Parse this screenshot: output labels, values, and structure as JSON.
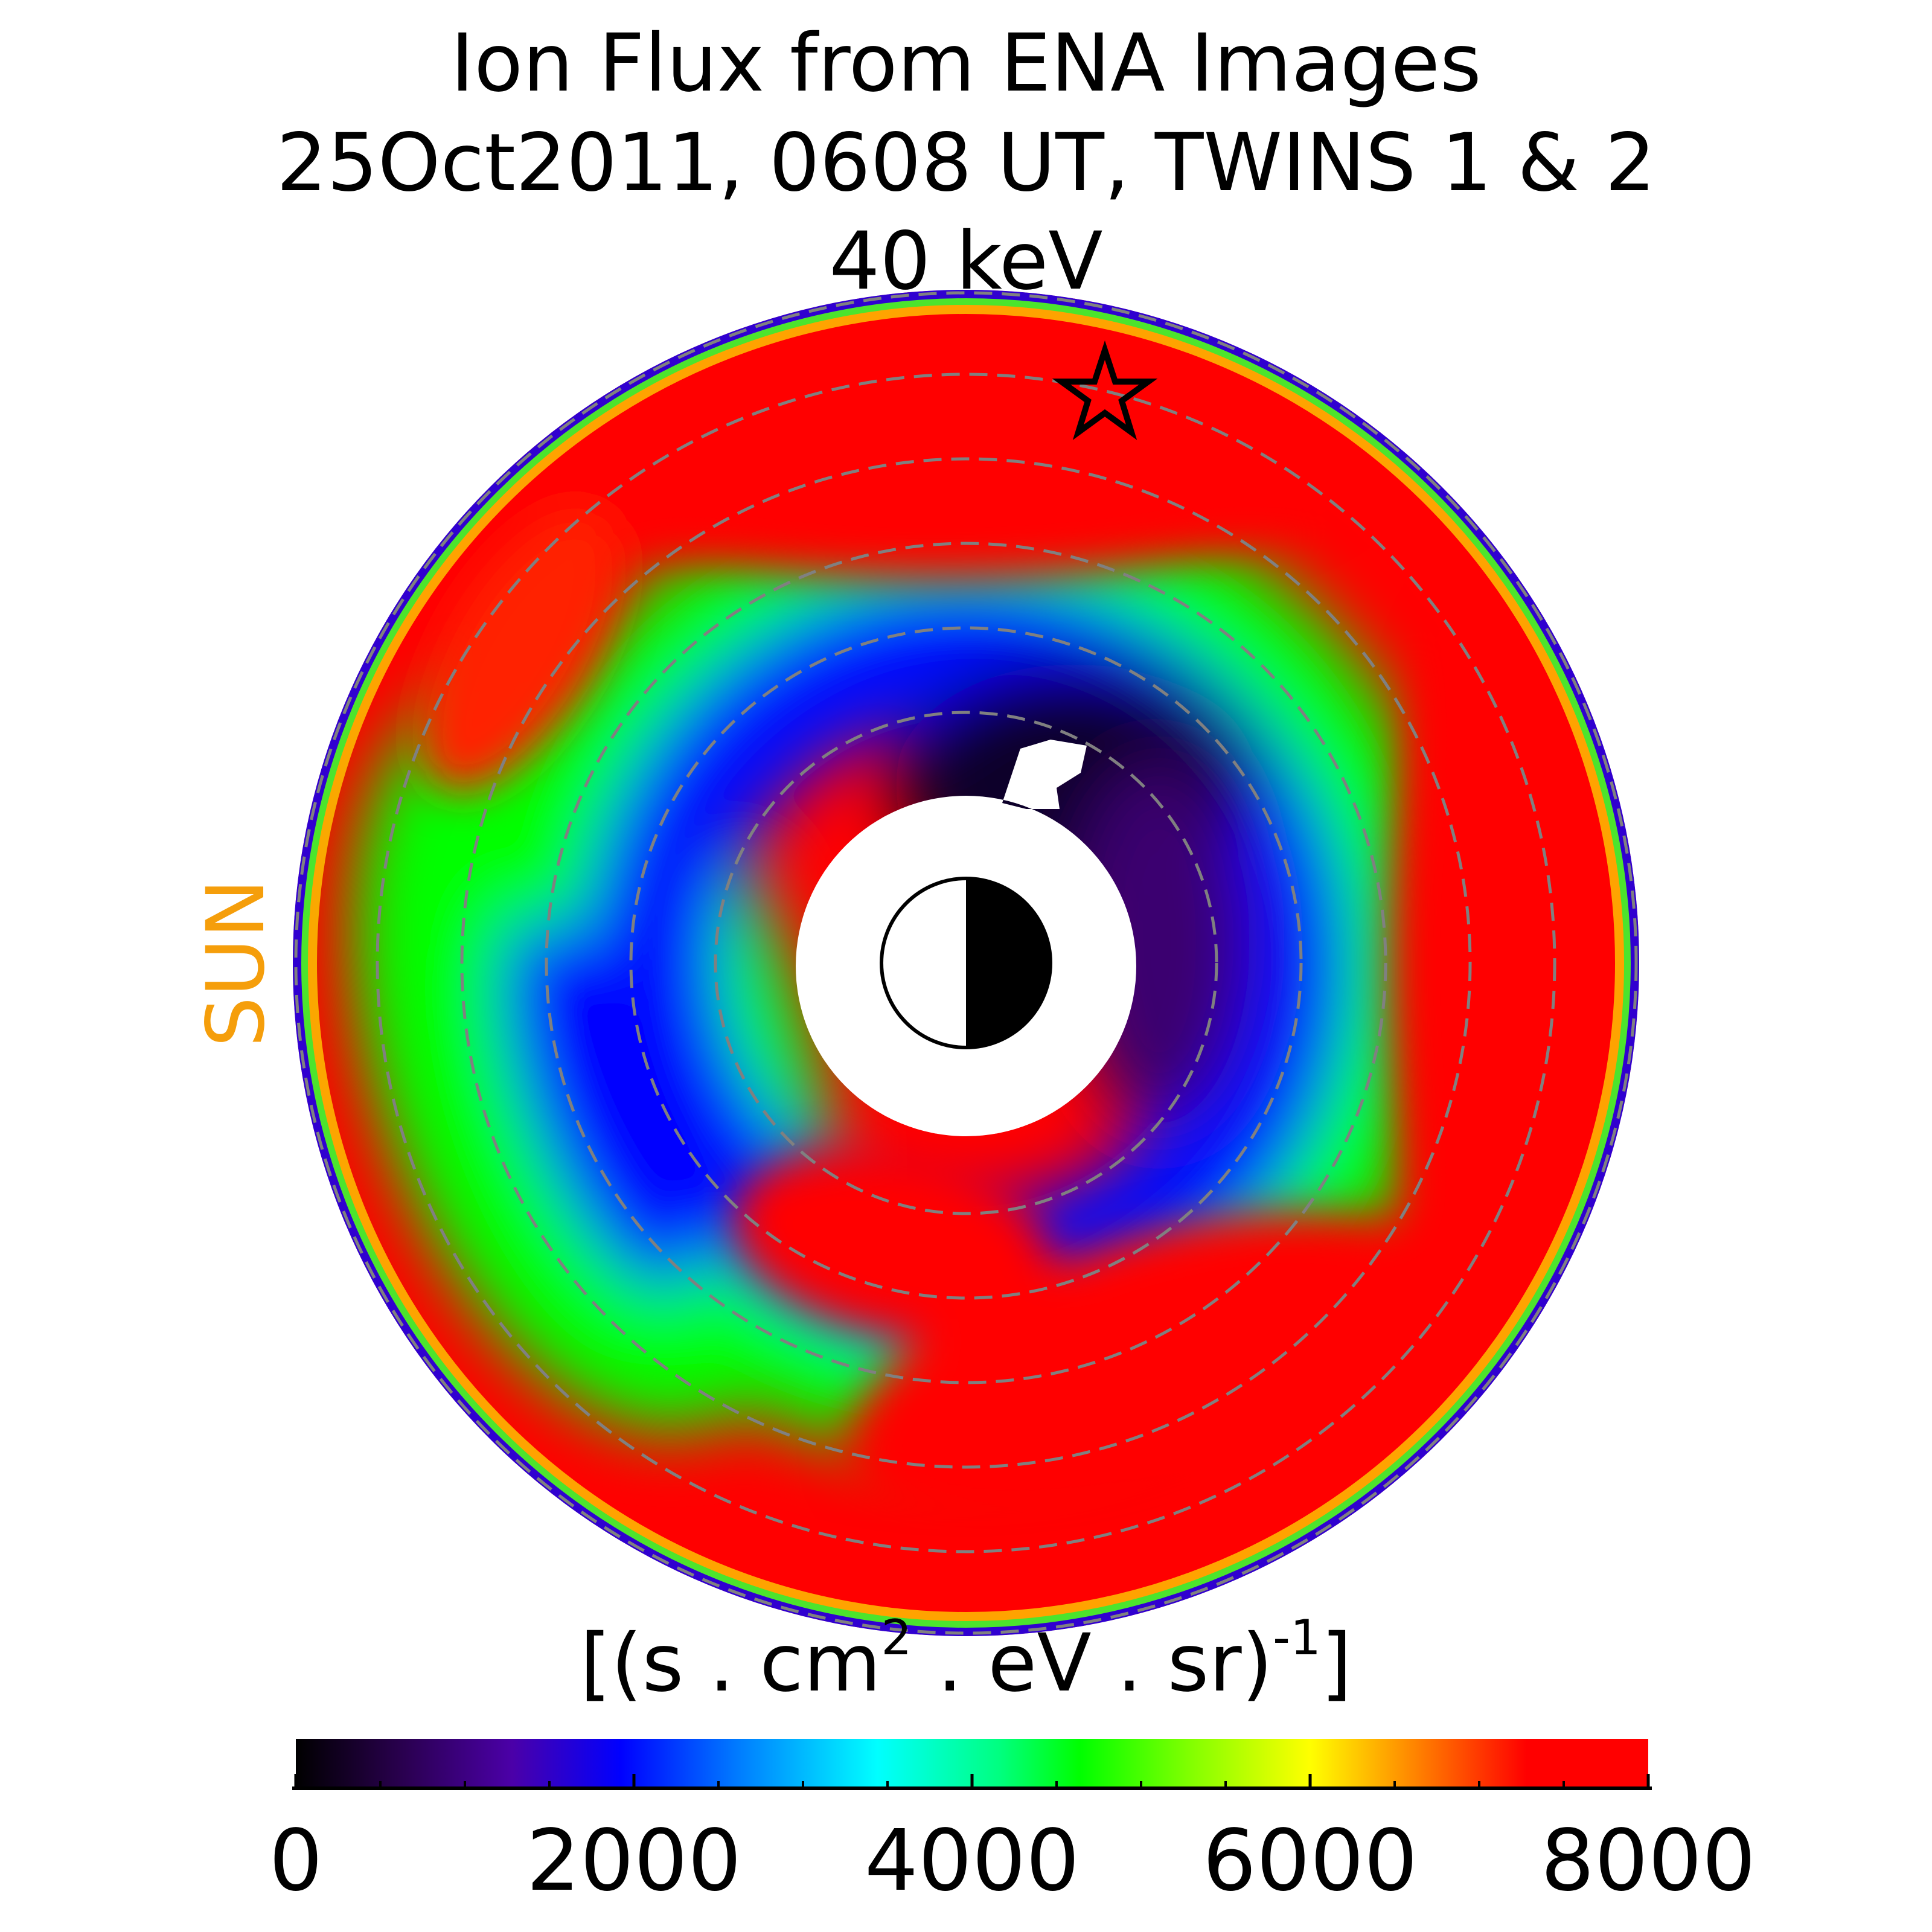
{
  "chart_data": {
    "type": "heatmap",
    "projection": "polar equatorial flux map",
    "title_lines": [
      "Ion Flux from  ENA Images",
      "25Oct2011, 0608 UT,  TWINS 1 & 2",
      "40 keV"
    ],
    "sun_label": "SUN",
    "sun_label_color": "#F59E0B",
    "colorbar": {
      "label_prefix": "[(s . cm",
      "label_sup_1": "2",
      "label_middle": "  . eV . sr)",
      "label_sup_2": "-1",
      "label_suffix": "]",
      "range": [
        0,
        8000
      ],
      "tick_labels": [
        "0",
        "2000",
        "4000",
        "6000",
        "8000"
      ],
      "tick_values": [
        0,
        2000,
        4000,
        6000,
        8000
      ],
      "minor_tick_step": 500,
      "colors": [
        "#000000",
        "#3a0070",
        "#4b00c8",
        "#0000ff",
        "#0080ff",
        "#00ffff",
        "#00ff80",
        "#00ff00",
        "#80ff00",
        "#ffff00",
        "#ff8000",
        "#ff0000",
        "#ff0000"
      ]
    },
    "features": {
      "star_marker": "spacecraft position",
      "earth_symbol": "half-lit Earth, sunward side white",
      "dashed_rings": "grey dashed distance circles",
      "earth_symbol_colors": {
        "day": "#ffffff",
        "night": "#000000"
      },
      "ring_color": "#808080"
    }
  }
}
